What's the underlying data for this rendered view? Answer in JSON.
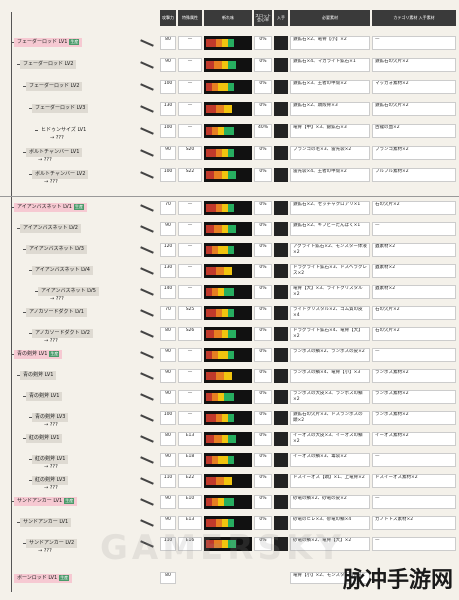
{
  "header": {
    "col_attack": "攻撃力",
    "col_element": "特殊属性",
    "col_sharp": "斬れ味",
    "col_slot": "スロット会心率",
    "col_type": "入手",
    "col_material": "必要素材",
    "col_extra": "カテゴリ素材 入手素材"
  },
  "groups": [
    {
      "name": "フェーダーロッド LV1",
      "tag": "生産",
      "style": "pink",
      "indent": 0,
      "attack": "80",
      "elem": "—",
      "slot": "0%",
      "material": "鉄鉱石×2、竜骨【小】×2",
      "extra": "—"
    },
    {
      "name": "フェーダーロッド LV2",
      "style": "gray",
      "indent": 1,
      "attack": "90",
      "elem": "—",
      "slot": "0%",
      "material": "鉄鉱石×4、マカライト鉱石×1",
      "extra": "鉄鉱石の欠片×2"
    },
    {
      "name": "フェーダーロッド LV2",
      "style": "gray",
      "indent": 2,
      "attack": "100",
      "elem": "—",
      "slot": "0%",
      "material": "鉄鉱石×3、王者の甲殻×2",
      "extra": "マッカォ素材×2"
    },
    {
      "name": "フェーダーロッド LV3",
      "style": "gray",
      "indent": 3,
      "attack": "130",
      "elem": "—",
      "slot": "0%",
      "material": "鉄鉱石×2、頭殻骨×3",
      "extra": "鉄鉱石の欠片×2"
    },
    {
      "name": "ヒドゥンサイズ LV1",
      "sub": "→ ???",
      "style": "none",
      "indent": 4,
      "attack": "100",
      "elem": "—",
      "slot": "40%",
      "material": "竜骨【中】×3、銀鉱石×3",
      "extra": "古龍の血×2"
    },
    {
      "name": "ボルトチャンバー LV1",
      "sub": "→ ???",
      "style": "gray",
      "indent": 2,
      "attack": "90",
      "elem": "S20",
      "slot": "0%",
      "material": "ブランゴの毛×3、雷光袋×2",
      "extra": "ブランゴ素材×2"
    },
    {
      "name": "ボルトチャンバー LV2",
      "sub": "→ ???",
      "style": "gray",
      "indent": 3,
      "attack": "100",
      "elem": "S22",
      "slot": "0%",
      "material": "雷光袋×4、王者の甲殻×2",
      "extra": "フルフル素材×2"
    }
  ],
  "groups2": [
    {
      "name": "アイアンバスネット LV1",
      "tag": "生産",
      "style": "pink",
      "indent": 0,
      "attack": "70",
      "elem": "—",
      "slot": "0%",
      "material": "鉄鉱石×2、セッチャクロアリ×1",
      "extra": "石の欠片×2"
    },
    {
      "name": "アイアンバスネット LV2",
      "style": "gray",
      "indent": 1,
      "attack": "90",
      "elem": "—",
      "slot": "0%",
      "material": "鉄鉱石×2、ギフビーたんぱく×1",
      "extra": "—"
    },
    {
      "name": "アイアンバスネット LV3",
      "style": "gray",
      "indent": 2,
      "attack": "120",
      "elem": "—",
      "slot": "0%",
      "material": "アグライト鉱石×2、モンスター体液×2",
      "extra": "蟲素材×2"
    },
    {
      "name": "アイアンバスネット LV4",
      "style": "gray",
      "indent": 3,
      "attack": "130",
      "elem": "—",
      "slot": "0%",
      "material": "ドラグライト鉱石×3、ドスヘラクレス×2",
      "extra": "蟲素材×2"
    },
    {
      "name": "アイアンバスネット LV5",
      "sub": "→ ???",
      "style": "gray",
      "indent": 4,
      "attack": "140",
      "elem": "—",
      "slot": "0%",
      "material": "竜骨【大】×3、ライトクリスタル×2",
      "extra": "蟲素材×2"
    },
    {
      "name": "アノカソードダクト LV1",
      "style": "gray",
      "indent": 2,
      "attack": "70",
      "elem": "S25",
      "slot": "0%",
      "material": "ライトクリスタル×2、ゴム質の皮×4",
      "extra": "石の欠片×2"
    },
    {
      "name": "アノカソードダクト LV2",
      "sub": "→ ???",
      "style": "gray",
      "indent": 3,
      "attack": "80",
      "elem": "S26",
      "slot": "0%",
      "material": "ドラグライト鉱石×4、竜骨【大】×2",
      "extra": "石の欠片×2"
    },
    {
      "name": "青の剣斧 LV1",
      "tag": "生産",
      "style": "pink",
      "indent": 0,
      "attack": "90",
      "elem": "—",
      "slot": "0%",
      "material": "ランポスの鱗×2、ランポスの皮×2",
      "extra": "—"
    },
    {
      "name": "青の剣斧 LV1",
      "style": "gray",
      "indent": 1,
      "attack": "90",
      "elem": "—",
      "slot": "0%",
      "material": "ランポスの鱗×4、竜骨【小】×3",
      "extra": "ランポス素材×2"
    },
    {
      "name": "青の剣斧 LV1",
      "style": "gray",
      "indent": 2,
      "attack": "90",
      "elem": "—",
      "slot": "0%",
      "material": "ランポスの大皮×3、ランポスの鱗×2",
      "extra": "ランポス素材×2"
    },
    {
      "name": "青の剣斧 LV3",
      "sub": "→ ???",
      "style": "gray",
      "indent": 3,
      "attack": "100",
      "elem": "—",
      "slot": "0%",
      "material": "鉄鉱石の欠片×3、ドスランポスの頭×2",
      "extra": "ランポス素材×2"
    },
    {
      "name": "紅の剣斧 LV1",
      "style": "gray",
      "indent": 2,
      "attack": "80",
      "elem": "E13",
      "slot": "0%",
      "material": "イーオスの大皮×3、イーオスの鱗×2",
      "extra": "イーオス素材×2"
    },
    {
      "name": "紅の剣斧 LV1",
      "sub": "→ ???",
      "style": "gray",
      "indent": 3,
      "attack": "90",
      "elem": "E18",
      "slot": "0%",
      "material": "イーオスの鱗×3、毒袋×2",
      "extra": "—"
    },
    {
      "name": "紅の剣斧 LV3",
      "sub": "→ ???",
      "style": "gray",
      "indent": 3,
      "attack": "110",
      "elem": "E22",
      "slot": "0%",
      "material": "ドスイーオス【頭】×1、上竜骨×2",
      "extra": "ドスイーオス素材×2"
    },
    {
      "name": "サンドアンカー LV1",
      "tag": "生産",
      "style": "pink",
      "indent": 0,
      "attack": "90",
      "elem": "E10",
      "slot": "0%",
      "material": "砂竜の鱗×2、砂竜の皮×2",
      "extra": "—"
    },
    {
      "name": "サンドアンカー LV1",
      "style": "gray",
      "indent": 1,
      "attack": "90",
      "elem": "E13",
      "slot": "0%",
      "material": "砂竜のヒレ×3、砂竜の鱗×4",
      "extra": "ガノトトス素材×2"
    },
    {
      "name": "サンドアンカー LV2",
      "sub": "→ ???",
      "style": "gray",
      "indent": 2,
      "attack": "110",
      "elem": "E16",
      "slot": "0%",
      "material": "砂竜の鱗×2、竜骨【大】×2",
      "extra": "—"
    }
  ],
  "bottom": {
    "name": "ボーンロッド LV1",
    "tag": "生産",
    "attack": "80",
    "material": "竜骨【小】×2、モンスターの骨×2"
  },
  "brand_text": "脉冲手游网",
  "watermark": "GAMERSKY"
}
